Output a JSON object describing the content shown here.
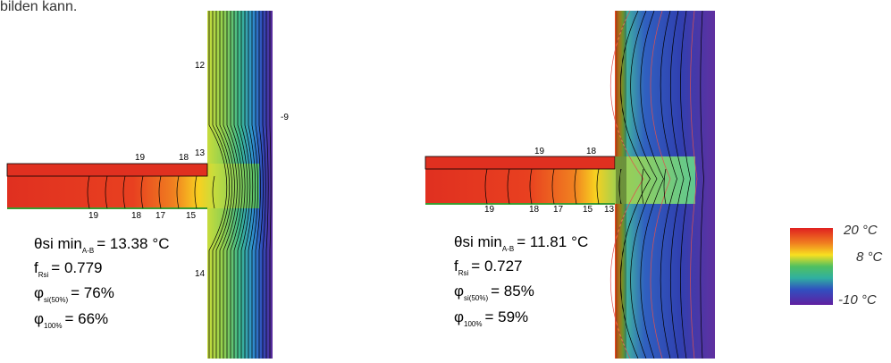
{
  "header": {
    "text": "bilden kann."
  },
  "panels": [
    {
      "contour_labels": [
        "12",
        "13",
        "19",
        "18",
        "-9",
        "19",
        "18",
        "17",
        "15",
        "14"
      ],
      "theta": {
        "symbol": "θ",
        "label": "si min",
        "sub": "A-B",
        "value": "= 13.38",
        "unit": "°C"
      },
      "f": {
        "symbol": "f",
        "sub": "Rsi",
        "value": "= 0.779"
      },
      "phi50": {
        "symbol": "φ",
        "sub": "si(50%)",
        "value": "= 76%"
      },
      "phi100": {
        "symbol": "φ",
        "sub": "100%",
        "value": "= 66%"
      }
    },
    {
      "contour_labels": [
        "19",
        "18",
        "19",
        "18",
        "17",
        "15",
        "13"
      ],
      "theta": {
        "symbol": "θ",
        "label": "si min",
        "sub": "A-B",
        "value": "= 11.81",
        "unit": "°C"
      },
      "f": {
        "symbol": "f",
        "sub": "Rsi",
        "value": "= 0.727"
      },
      "phi50": {
        "symbol": "φ",
        "sub": "si(50%)",
        "value": "= 85%"
      },
      "phi100": {
        "symbol": "φ",
        "sub": "100%",
        "value": "= 59%"
      }
    }
  ],
  "legend": {
    "labels": [
      "20 °C",
      "8 °C",
      "-10 °C"
    ]
  }
}
